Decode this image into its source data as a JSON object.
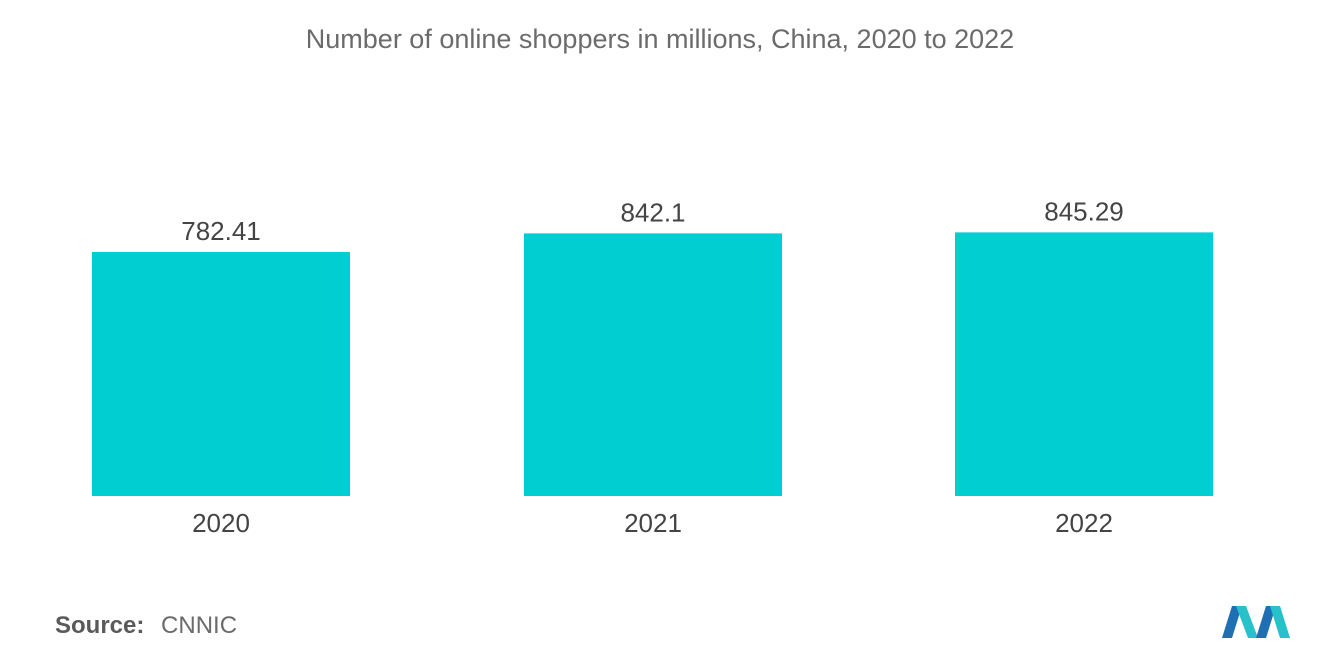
{
  "chart_data": {
    "type": "bar",
    "title": "Number of online shoppers in millions, China, 2020 to 2022",
    "categories": [
      "2020",
      "2021",
      "2022"
    ],
    "values": [
      782.41,
      842.1,
      845.29
    ],
    "value_labels": [
      "782.41",
      "842.1",
      "845.29"
    ],
    "xlabel": "",
    "ylabel": "",
    "grid": false,
    "legend": "none",
    "bar_color": "#00ced1"
  },
  "source": {
    "label": "Source:",
    "value": "CNNIC"
  },
  "logo": {
    "icon": "mordor-intelligence-logo",
    "colors": [
      "#1f6fb5",
      "#27c1c9"
    ]
  }
}
